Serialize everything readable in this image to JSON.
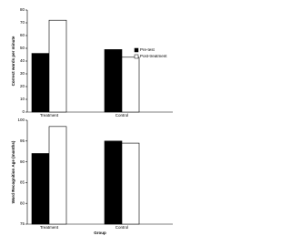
{
  "chart_data": [
    {
      "type": "bar",
      "y_label": "Correct words per minute",
      "categories": [
        "Treatment",
        "Control"
      ],
      "series": [
        {
          "name": "Pre-test",
          "color": "#000000",
          "values": [
            46,
            49
          ]
        },
        {
          "name": "Post-treatment",
          "color": "#ffffff",
          "values": [
            72,
            43
          ]
        }
      ],
      "ylim": [
        0,
        80
      ],
      "yticks": [
        0,
        10,
        20,
        30,
        40,
        50,
        60,
        70,
        80
      ],
      "legend": "right"
    },
    {
      "type": "bar",
      "x_label": "Group",
      "y_label": "Word Recognition Age (months)",
      "categories": [
        "Treatment",
        "Control"
      ],
      "series": [
        {
          "name": "Pre-test",
          "color": "#000000",
          "values": [
            92,
            95
          ]
        },
        {
          "name": "Post-treatment",
          "color": "#ffffff",
          "values": [
            98.5,
            94.5
          ]
        }
      ],
      "ylim": [
        75,
        100
      ],
      "yticks": [
        75,
        80,
        85,
        90,
        95,
        100
      ]
    }
  ]
}
